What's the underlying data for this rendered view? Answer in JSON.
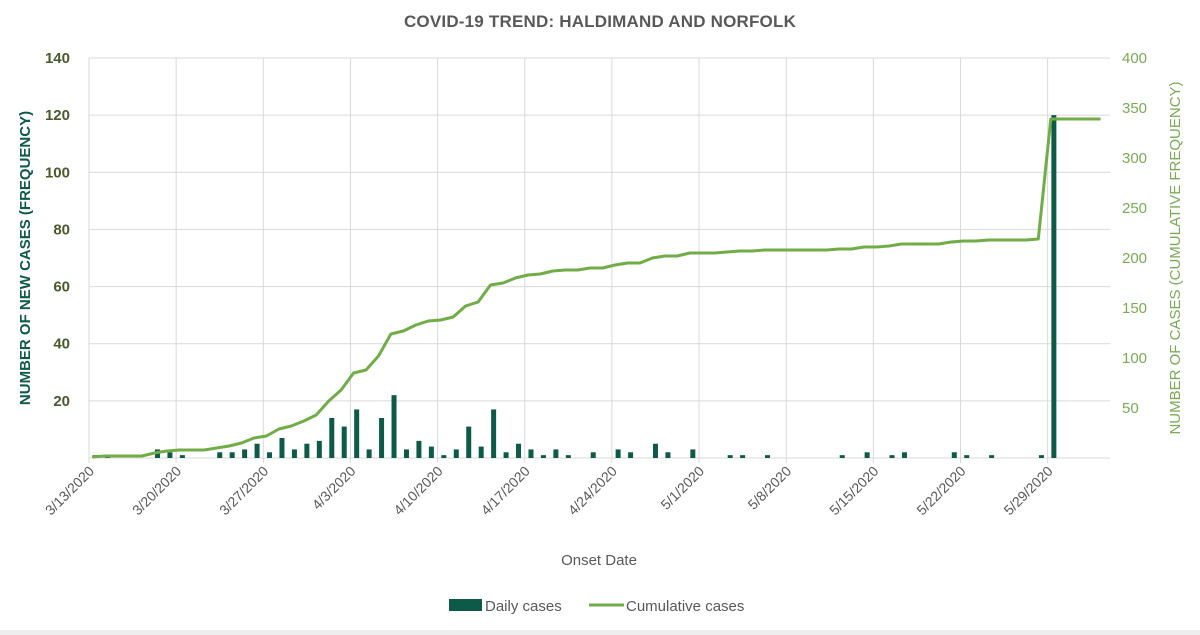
{
  "chart_data": {
    "type": "bar+line",
    "title": "COVID-19 TREND: HALDIMAND AND NORFOLK",
    "xlabel": "Onset Date",
    "ylabel_left": "NUMBER OF NEW CASES (FREQUENCY)",
    "ylabel_right": "NUMBER OF CASES (CUMULATIVE FREQUENCY)",
    "ylim_left": [
      0,
      140
    ],
    "ylim_right": [
      0,
      400
    ],
    "yticks_left": [
      20,
      40,
      60,
      80,
      100,
      120,
      140
    ],
    "yticks_right": [
      50,
      100,
      150,
      200,
      250,
      300,
      350,
      400
    ],
    "xticks": [
      "3/13/2020",
      "3/20/2020",
      "3/27/2020",
      "4/3/2020",
      "4/10/2020",
      "4/17/2020",
      "4/24/2020",
      "5/1/2020",
      "5/8/2020",
      "5/15/2020",
      "5/22/2020",
      "5/29/2020"
    ],
    "grid": true,
    "legend_position": "bottom",
    "start_date": "3/13/2020",
    "end_date": "6/2/2020",
    "colors": {
      "daily": "#0e5a48",
      "cumulative": "#70ad47",
      "grid": "#d9d9d9"
    },
    "series": [
      {
        "name": "Daily cases",
        "type": "bar",
        "axis": "left",
        "values": [
          1,
          1,
          0,
          0,
          0,
          3,
          2,
          1,
          0,
          0,
          2,
          2,
          3,
          5,
          2,
          7,
          3,
          5,
          6,
          14,
          11,
          17,
          3,
          14,
          22,
          3,
          6,
          4,
          1,
          3,
          11,
          4,
          17,
          2,
          5,
          3,
          1,
          3,
          1,
          0,
          2,
          0,
          3,
          2,
          0,
          5,
          2,
          0,
          3,
          0,
          0,
          1,
          1,
          0,
          1,
          0,
          0,
          0,
          0,
          0,
          1,
          0,
          2,
          0,
          1,
          2,
          0,
          0,
          0,
          2,
          1,
          0,
          1,
          0,
          0,
          0,
          1,
          120,
          0,
          0,
          0,
          0
        ]
      },
      {
        "name": "Cumulative cases",
        "type": "line",
        "axis": "right",
        "values": [
          1,
          2,
          2,
          2,
          2,
          5,
          7,
          8,
          8,
          8,
          10,
          12,
          15,
          20,
          22,
          29,
          32,
          37,
          43,
          57,
          68,
          85,
          88,
          102,
          124,
          127,
          133,
          137,
          138,
          141,
          152,
          156,
          173,
          175,
          180,
          183,
          184,
          187,
          188,
          188,
          190,
          190,
          193,
          195,
          195,
          200,
          202,
          202,
          205,
          205,
          205,
          206,
          207,
          207,
          208,
          208,
          208,
          208,
          208,
          208,
          209,
          209,
          211,
          211,
          212,
          214,
          214,
          214,
          214,
          216,
          217,
          217,
          218,
          218,
          218,
          218,
          219,
          339,
          339,
          339,
          339,
          339
        ]
      }
    ]
  },
  "legend": {
    "items": [
      {
        "label": "Daily cases"
      },
      {
        "label": "Cumulative cases"
      }
    ]
  }
}
